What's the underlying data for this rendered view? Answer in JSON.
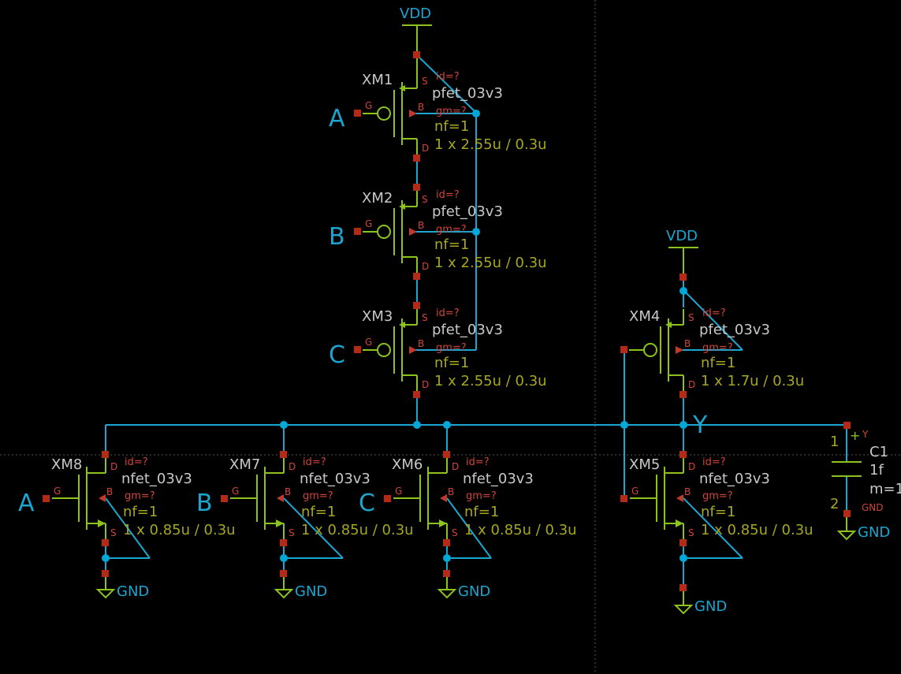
{
  "colors": {
    "background": "#000000",
    "wire": "#1aa6d0",
    "symbol": "#8cc21e",
    "pin": "#b52a17",
    "pin_label": "#d0453a",
    "instance_name": "#c8c8c8",
    "model_name": "#c8c8c8",
    "param": "#a6a620",
    "net_label": "#1aa6d0"
  },
  "supply": {
    "vdd_label": "VDD",
    "gnd_label": "GND"
  },
  "pins": {
    "gate": "G",
    "drain": "D",
    "source": "S",
    "bulk": "B"
  },
  "inputs": {
    "a": "A",
    "b": "B",
    "c": "C"
  },
  "output": {
    "y": "Y"
  },
  "pmos": [
    {
      "name": "XM1",
      "model": "pfet_03v3",
      "id": "id=?",
      "gm": "gm=?",
      "nf": "nf=1",
      "size": "1 x 2.55u / 0.3u"
    },
    {
      "name": "XM2",
      "model": "pfet_03v3",
      "id": "id=?",
      "gm": "gm=?",
      "nf": "nf=1",
      "size": "1 x 2.55u / 0.3u"
    },
    {
      "name": "XM3",
      "model": "pfet_03v3",
      "id": "id=?",
      "gm": "gm=?",
      "nf": "nf=1",
      "size": "1 x 2.55u / 0.3u"
    },
    {
      "name": "XM4",
      "model": "pfet_03v3",
      "id": "id=?",
      "gm": "gm=?",
      "nf": "nf=1",
      "size": "1 x 1.7u / 0.3u"
    }
  ],
  "nmos": [
    {
      "name": "XM8",
      "model": "nfet_03v3",
      "id": "id=?",
      "gm": "gm=?",
      "nf": "nf=1",
      "size": "1 x 0.85u / 0.3u"
    },
    {
      "name": "XM7",
      "model": "nfet_03v3",
      "id": "id=?",
      "gm": "gm=?",
      "nf": "nf=1",
      "size": "1 x 0.85u / 0.3u"
    },
    {
      "name": "XM6",
      "model": "nfet_03v3",
      "id": "id=?",
      "gm": "gm=?",
      "nf": "nf=1",
      "size": "1 x 0.85u / 0.3u"
    },
    {
      "name": "XM5",
      "model": "nfet_03v3",
      "id": "id=?",
      "gm": "gm=?",
      "nf": "nf=1",
      "size": "1 x 0.85u / 0.3u"
    }
  ],
  "capacitor": {
    "name": "C1",
    "value": "1f",
    "mult": "m=1",
    "pin1": "1",
    "pin2": "2",
    "plus": "+",
    "net_top": "Y",
    "net_bottom": "GND"
  }
}
